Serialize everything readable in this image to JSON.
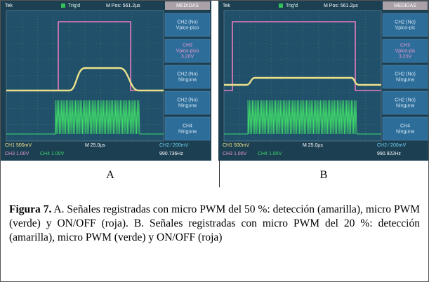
{
  "panels": [
    {
      "label": "A",
      "scope": {
        "brand": "Tek",
        "trigger": "Trig'd",
        "position": "M Pos: 561.2µs",
        "menu_title": "MEDIDAS",
        "menu": [
          [
            "CH2 (No)",
            "Vpico-pico"
          ],
          [
            "CH3",
            "Vpico-pico",
            "3.20V"
          ],
          [
            "CH2 (No)",
            "Ninguna"
          ],
          [
            "CH2 (No)",
            "Ninguna"
          ],
          [
            "CH4",
            "Ninguna"
          ]
        ],
        "ch1": "CH1  500mV",
        "timebase": "M 25.0µs",
        "ch2": "CH2 ⁄  200mV",
        "ch3": "CH3  1.00V",
        "ch4": "CH4  1.00V",
        "frequency": "990.736Hz"
      }
    },
    {
      "label": "B",
      "scope": {
        "brand": "Tek",
        "trigger": "Trig'd",
        "position": "M Pos: 561.2µs",
        "menu_title": "MEDIDAS",
        "menu": [
          [
            "CH2 (No)",
            "Vpico-pic"
          ],
          [
            "CH3",
            "Vpico-pic",
            "3.20V"
          ],
          [
            "CH2 (No)",
            "Ninguna"
          ],
          [
            "CH2 (No)",
            "Ninguna"
          ],
          [
            "CH4",
            "Ninguna"
          ]
        ],
        "ch1": "CH1  500mV",
        "timebase": "M 25.0µs",
        "ch2": "CH2 ⁄  200mV",
        "ch3": "CH3  1.00V",
        "ch4": "CH4  1.00V",
        "frequency": "990.922Hz"
      }
    }
  ],
  "caption": {
    "label": "Figura 7.",
    "text": " A. Señales registradas con micro PWM del 50 %: detección (amarilla), micro PWM (verde) y ON/OFF (roja). B. Señales registradas con micro PWM del 20 %: detección (amarilla), micro PWM (verde) y ON/OFF (roja)"
  }
}
